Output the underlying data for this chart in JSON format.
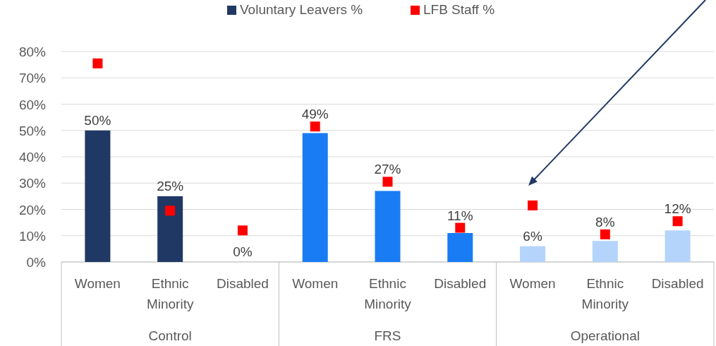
{
  "chart_data": {
    "type": "bar",
    "categories": [
      "Women",
      "Ethnic Minority",
      "Disabled",
      "Women",
      "Ethnic Minority",
      "Disabled",
      "Women",
      "Ethnic Minority",
      "Disabled"
    ],
    "series": [
      {
        "name": "Voluntary Leavers %",
        "color": "#203864",
        "colors": [
          "#203864",
          "#203864",
          "#203864",
          "#1a7cf5",
          "#1a7cf5",
          "#1a7cf5",
          "#b4d4fb",
          "#b4d4fb",
          "#b4d4fb"
        ],
        "values": [
          50,
          25,
          0,
          49,
          27,
          11,
          6,
          8,
          12
        ],
        "value_labels": [
          "50%",
          "25%",
          "0%",
          "49%",
          "27%",
          "11%",
          "6%",
          "8%",
          "12%"
        ]
      },
      {
        "name": "LFB Staff %",
        "type": "scatter",
        "color": "#ff0000",
        "marker": "square",
        "values": [
          75.5,
          19.5,
          12,
          51.5,
          30.5,
          13,
          21.5,
          10.5,
          15.5
        ]
      }
    ],
    "ylim": [
      0,
      80
    ],
    "yticks": [
      {
        "value": 0,
        "label": "0%"
      },
      {
        "value": 10,
        "label": "10%"
      },
      {
        "value": 20,
        "label": "20%"
      },
      {
        "value": 30,
        "label": "30%"
      },
      {
        "value": 40,
        "label": "40%"
      },
      {
        "value": 50,
        "label": "50%"
      },
      {
        "value": 60,
        "label": "60%"
      },
      {
        "value": 70,
        "label": "70%"
      },
      {
        "value": 80,
        "label": "80%"
      }
    ],
    "grid": "y",
    "legend": "top",
    "annotations": [
      "Control",
      "FRS",
      "Operational"
    ]
  }
}
